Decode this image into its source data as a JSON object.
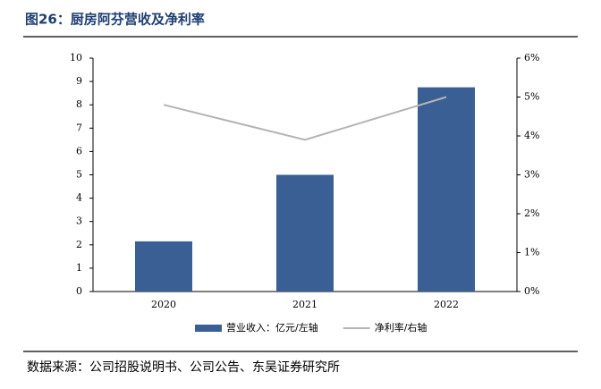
{
  "chart_data": {
    "type": "bar",
    "title": "图26：厨房阿芬营收及净利率",
    "categories": [
      "2020",
      "2021",
      "2022"
    ],
    "series": [
      {
        "name": "营业收入：亿元/左轴",
        "type": "bar",
        "color": "#3a5f94",
        "values": [
          2.15,
          5.0,
          8.75
        ]
      },
      {
        "name": "净利率/右轴",
        "type": "line",
        "axis": "y2",
        "color": "#b4b4b4",
        "values": [
          4.8,
          3.9,
          5.0
        ]
      }
    ],
    "ylim": [
      0,
      10
    ],
    "yticks": [
      0,
      1,
      2,
      3,
      4,
      5,
      6,
      7,
      8,
      9,
      10
    ],
    "y2lim": [
      0,
      6
    ],
    "y2ticks": [
      {
        "value": 0,
        "label": "0%"
      },
      {
        "value": 1,
        "label": "1%"
      },
      {
        "value": 2,
        "label": "2%"
      },
      {
        "value": 3,
        "label": "3%"
      },
      {
        "value": 4,
        "label": "4%"
      },
      {
        "value": 5,
        "label": "5%"
      },
      {
        "value": 6,
        "label": "6%"
      }
    ],
    "grid": false,
    "source": "数据来源：公司招股说明书、公司公告、东吴证券研究所"
  }
}
